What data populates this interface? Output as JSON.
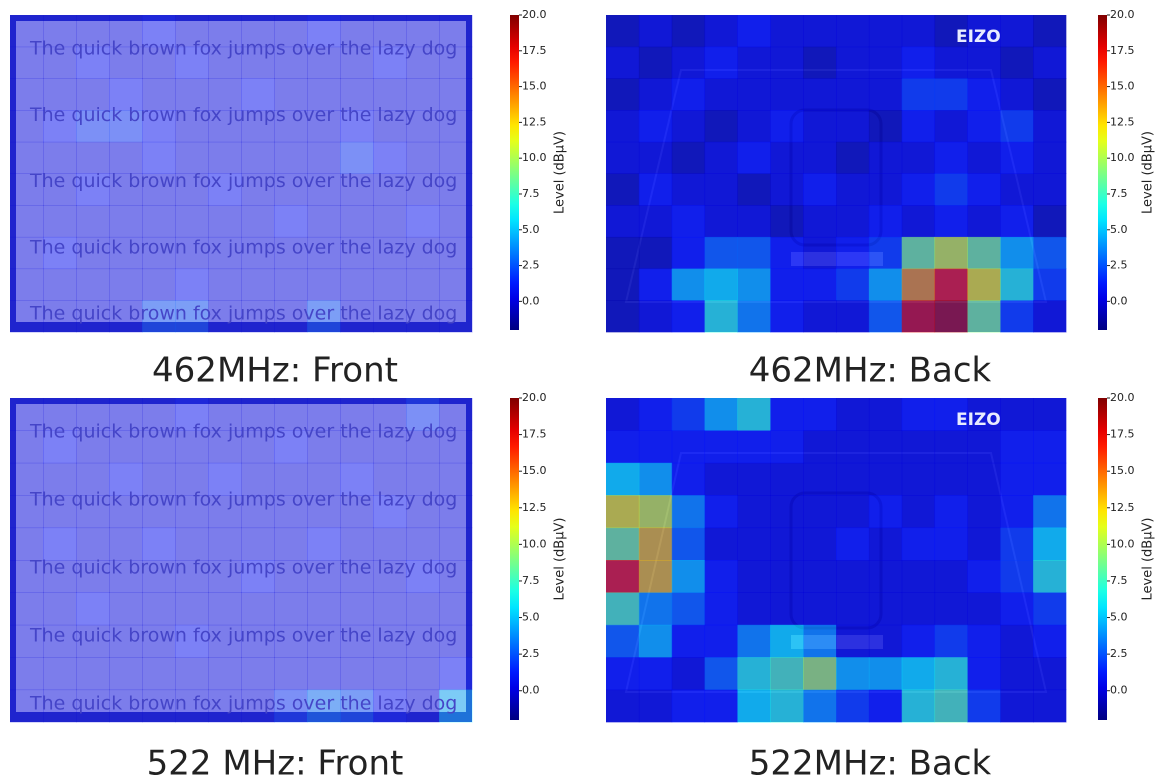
{
  "chart_data": [
    {
      "type": "heatmap",
      "title": "462MHz: Front",
      "colorbar_label": "Level (dBμV)",
      "colormap": "jet",
      "zlim": [
        -2,
        20
      ],
      "zticks": [
        {
          "value": 0,
          "label": "0.0"
        },
        2.5,
        {
          "value": 5,
          "label": "5.0"
        },
        7.5,
        {
          "value": 10,
          "label": "10.0"
        },
        12.5,
        {
          "value": 15,
          "label": "15.0"
        },
        17.5,
        {
          "value": 20,
          "label": "20.0"
        }
      ],
      "background_text": [
        "The quick brown fox jumps over the lazy dog",
        "The quick brown fox jumps over the lazy dog",
        "The quick brown fox jumps over the lazy dog",
        "The quick brown fox jumps over the lazy dog",
        "The quick brown fox jumps over the lazy dog"
      ],
      "values": [
        [
          0,
          0,
          0,
          0,
          1,
          0,
          0,
          0,
          0,
          1,
          0,
          0,
          0,
          0
        ],
        [
          0,
          0,
          1,
          0,
          0,
          1,
          0,
          0,
          0,
          0,
          0,
          1,
          0,
          0
        ],
        [
          0,
          0,
          0,
          1,
          0,
          0,
          0,
          1,
          0,
          0,
          0,
          0,
          0,
          0
        ],
        [
          0,
          1,
          2,
          2,
          1,
          0,
          0,
          0,
          0,
          0,
          1,
          0,
          0,
          0
        ],
        [
          0,
          0,
          0,
          0,
          1,
          0,
          0,
          0,
          0,
          0,
          2,
          1,
          0,
          0
        ],
        [
          0,
          0,
          1,
          0,
          0,
          0,
          1,
          0,
          0,
          0,
          0,
          0,
          0,
          0
        ],
        [
          0,
          0,
          0,
          0,
          0,
          0,
          0,
          0,
          1,
          0,
          0,
          0,
          1,
          0
        ],
        [
          0,
          1,
          0,
          0,
          0,
          0,
          0,
          0,
          0,
          0,
          0,
          0,
          0,
          0
        ],
        [
          0,
          0,
          0,
          0,
          0,
          1,
          0,
          0,
          0,
          0,
          0,
          0,
          0,
          0
        ],
        [
          0,
          0,
          0,
          0,
          3,
          3,
          0,
          0,
          0,
          3,
          0,
          0,
          0,
          0
        ]
      ]
    },
    {
      "type": "heatmap",
      "title": "462MHz: Back",
      "colorbar_label": "Level (dBμV)",
      "colormap": "jet",
      "zlim": [
        -2,
        20
      ],
      "zticks": [
        {
          "value": 0,
          "label": "0.0"
        },
        2.5,
        {
          "value": 5,
          "label": "5.0"
        },
        7.5,
        {
          "value": 10,
          "label": "10.0"
        },
        12.5,
        {
          "value": 15,
          "label": "15.0"
        },
        17.5,
        {
          "value": 20,
          "label": "20.0"
        }
      ],
      "background_text": [
        "EIZO"
      ],
      "values": [
        [
          -1,
          0,
          -1,
          0,
          1,
          0,
          0,
          0,
          0,
          0,
          -1,
          0,
          0,
          -1
        ],
        [
          0,
          -1,
          0,
          1,
          0,
          0,
          -1,
          0,
          0,
          1,
          0,
          0,
          -1,
          0
        ],
        [
          -1,
          0,
          1,
          0,
          0,
          0,
          0,
          0,
          0,
          2,
          2,
          1,
          0,
          -1
        ],
        [
          0,
          1,
          0,
          -1,
          0,
          1,
          0,
          0,
          -1,
          1,
          0,
          1,
          2,
          0
        ],
        [
          0,
          0,
          -1,
          0,
          1,
          0,
          0,
          -1,
          0,
          0,
          1,
          0,
          1,
          0
        ],
        [
          -1,
          1,
          0,
          0,
          -1,
          0,
          1,
          0,
          0,
          1,
          2,
          1,
          0,
          0
        ],
        [
          0,
          0,
          1,
          0,
          0,
          -1,
          0,
          0,
          1,
          0,
          1,
          0,
          1,
          -1
        ],
        [
          -1,
          -1,
          1,
          3,
          3,
          1,
          0,
          1,
          2,
          9,
          11,
          9,
          5,
          3
        ],
        [
          -1,
          1,
          5,
          6,
          5,
          1,
          1,
          2,
          5,
          14,
          17,
          12,
          7,
          2
        ],
        [
          -1,
          0,
          1,
          7,
          4,
          1,
          0,
          0,
          3,
          18,
          19,
          9,
          2,
          0
        ]
      ]
    },
    {
      "type": "heatmap",
      "title": "522 MHz: Front",
      "colorbar_label": "Level (dBμV)",
      "colormap": "jet",
      "zlim": [
        -2,
        20
      ],
      "zticks": [
        {
          "value": 0,
          "label": "0.0"
        },
        2.5,
        {
          "value": 5,
          "label": "5.0"
        },
        7.5,
        {
          "value": 10,
          "label": "10.0"
        },
        12.5,
        {
          "value": 15,
          "label": "15.0"
        },
        17.5,
        {
          "value": 20,
          "label": "20.0"
        }
      ],
      "background_text": [
        "The quick brown fox jumps over the lazy dog",
        "The quick brown fox jumps over the lazy dog",
        "The quick brown fox jumps over the lazy dog",
        "The quick brown fox jumps over the lazy dog",
        "The quick brown fox jumps over the lazy dog"
      ],
      "values": [
        [
          0,
          0,
          0,
          0,
          0,
          1,
          0,
          0,
          0,
          0,
          0,
          0,
          2,
          0
        ],
        [
          0,
          1,
          0,
          0,
          0,
          0,
          0,
          0,
          1,
          0,
          0,
          0,
          0,
          0
        ],
        [
          0,
          0,
          0,
          1,
          0,
          0,
          1,
          0,
          0,
          0,
          1,
          0,
          0,
          0
        ],
        [
          0,
          0,
          0,
          0,
          0,
          0,
          0,
          0,
          0,
          0,
          0,
          1,
          0,
          0
        ],
        [
          0,
          1,
          0,
          0,
          1,
          0,
          0,
          0,
          0,
          1,
          0,
          0,
          0,
          0
        ],
        [
          0,
          0,
          0,
          0,
          0,
          0,
          0,
          1,
          0,
          0,
          0,
          0,
          1,
          0
        ],
        [
          0,
          0,
          1,
          0,
          0,
          0,
          0,
          0,
          0,
          0,
          0,
          0,
          0,
          0
        ],
        [
          0,
          0,
          0,
          0,
          0,
          1,
          0,
          0,
          0,
          0,
          0,
          0,
          0,
          0
        ],
        [
          0,
          0,
          0,
          0,
          0,
          0,
          0,
          0,
          0,
          0,
          0,
          0,
          0,
          1
        ],
        [
          0,
          0,
          0,
          0,
          0,
          0,
          0,
          0,
          2,
          4,
          3,
          1,
          0,
          6
        ]
      ]
    },
    {
      "type": "heatmap",
      "title": "522MHz: Back",
      "colorbar_label": "Level (dBμV)",
      "colormap": "jet",
      "zlim": [
        -2,
        20
      ],
      "zticks": [
        {
          "value": 0,
          "label": "0.0"
        },
        2.5,
        {
          "value": 5,
          "label": "5.0"
        },
        7.5,
        {
          "value": 10,
          "label": "10.0"
        },
        12.5,
        {
          "value": 15,
          "label": "15.0"
        },
        17.5,
        {
          "value": 20,
          "label": "20.0"
        }
      ],
      "background_text": [
        "EIZO"
      ],
      "values": [
        [
          0,
          1,
          2,
          5,
          7,
          1,
          1,
          0,
          0,
          1,
          1,
          0,
          0,
          0
        ],
        [
          1,
          1,
          1,
          1,
          1,
          1,
          0,
          0,
          0,
          0,
          0,
          0,
          1,
          1
        ],
        [
          6,
          5,
          1,
          0,
          0,
          0,
          0,
          0,
          0,
          0,
          0,
          0,
          1,
          1
        ],
        [
          12,
          11,
          4,
          1,
          0,
          0,
          0,
          0,
          1,
          0,
          1,
          0,
          1,
          4
        ],
        [
          9,
          13,
          3,
          0,
          0,
          0,
          0,
          1,
          0,
          1,
          1,
          0,
          2,
          6
        ],
        [
          17,
          13,
          5,
          1,
          0,
          0,
          0,
          0,
          0,
          0,
          0,
          1,
          2,
          7
        ],
        [
          8,
          4,
          3,
          1,
          0,
          0,
          0,
          0,
          0,
          0,
          0,
          0,
          1,
          2
        ],
        [
          3,
          5,
          1,
          1,
          4,
          6,
          4,
          0,
          0,
          1,
          2,
          1,
          0,
          1
        ],
        [
          1,
          1,
          0,
          3,
          7,
          8,
          10,
          5,
          5,
          6,
          7,
          1,
          0,
          0
        ],
        [
          0,
          0,
          1,
          1,
          6,
          7,
          4,
          2,
          1,
          7,
          8,
          2,
          0,
          0
        ]
      ]
    }
  ]
}
